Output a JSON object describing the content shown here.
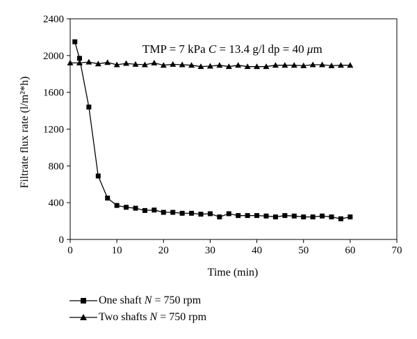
{
  "chart_data": {
    "type": "line",
    "xlabel": "Time (min)",
    "ylabel": "Filtrate flux rate (l/m²*h)",
    "xlim": [
      0,
      70
    ],
    "ylim": [
      0,
      2400
    ],
    "xticks": [
      0,
      10,
      20,
      30,
      40,
      50,
      60,
      70
    ],
    "yticks": [
      0,
      400,
      800,
      1200,
      1600,
      2000,
      2400
    ],
    "grid": false,
    "annotation": {
      "prefix": "TMP = 7 kPa ",
      "c_symbol": "C",
      "c_value": " = 13.4 g/l dp = 40 ",
      "mu": "μ",
      "unit": "m"
    },
    "series": [
      {
        "name": "One shaft N = 750 rpm",
        "label_prefix": "One shaft ",
        "label_var": "N",
        "label_suffix": " = 750 rpm",
        "marker": "square",
        "x": [
          1,
          2,
          4,
          6,
          8,
          10,
          12,
          14,
          16,
          18,
          20,
          22,
          24,
          26,
          28,
          30,
          32,
          34,
          36,
          38,
          40,
          42,
          44,
          46,
          48,
          50,
          52,
          54,
          56,
          58,
          60
        ],
        "y": [
          2150,
          1970,
          1440,
          690,
          450,
          370,
          350,
          340,
          315,
          320,
          295,
          295,
          285,
          285,
          275,
          280,
          245,
          280,
          260,
          260,
          260,
          255,
          245,
          260,
          255,
          245,
          245,
          255,
          245,
          225,
          245
        ]
      },
      {
        "name": "Two shafts N = 750 rpm",
        "label_prefix": "Two shafts ",
        "label_var": "N",
        "label_suffix": " = 750 rpm",
        "marker": "triangle",
        "x": [
          0,
          2,
          4,
          6,
          8,
          10,
          12,
          14,
          16,
          18,
          20,
          22,
          24,
          26,
          28,
          30,
          32,
          34,
          36,
          38,
          40,
          42,
          44,
          46,
          48,
          50,
          52,
          54,
          56,
          58,
          60
        ],
        "y": [
          1920,
          1920,
          1930,
          1910,
          1925,
          1900,
          1915,
          1905,
          1900,
          1920,
          1895,
          1905,
          1900,
          1895,
          1880,
          1885,
          1895,
          1880,
          1895,
          1880,
          1880,
          1880,
          1895,
          1895,
          1895,
          1890,
          1900,
          1900,
          1890,
          1895,
          1895
        ]
      }
    ]
  }
}
